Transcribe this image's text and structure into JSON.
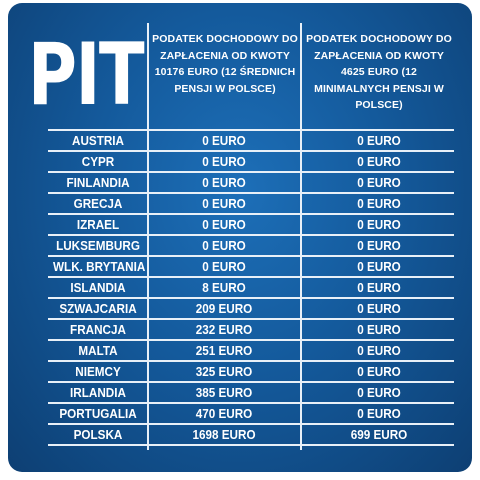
{
  "title": "PIT",
  "columns": [
    "PODATEK DOCHODOWY DO ZAPŁACENIA OD KWOTY 10176 EURO (12 ŚREDNICH PENSJI W POLSCE)",
    "PODATEK DOCHODOWY DO ZAPŁACENIA OD KWOTY 4625 EURO (12 MINIMALNYCH PENSJI W POLSCE)"
  ],
  "rows": [
    {
      "country": "AUSTRIA",
      "avg": "0 EURO",
      "min": "0 EURO"
    },
    {
      "country": "CYPR",
      "avg": "0 EURO",
      "min": "0 EURO"
    },
    {
      "country": "FINLANDIA",
      "avg": "0 EURO",
      "min": "0 EURO"
    },
    {
      "country": "GRECJA",
      "avg": "0 EURO",
      "min": "0 EURO"
    },
    {
      "country": "IZRAEL",
      "avg": "0 EURO",
      "min": "0 EURO"
    },
    {
      "country": "LUKSEMBURG",
      "avg": "0 EURO",
      "min": "0 EURO"
    },
    {
      "country": "WLK. BRYTANIA",
      "avg": "0 EURO",
      "min": "0 EURO"
    },
    {
      "country": "ISLANDIA",
      "avg": "8 EURO",
      "min": "0 EURO"
    },
    {
      "country": "SZWAJCARIA",
      "avg": "209 EURO",
      "min": "0 EURO"
    },
    {
      "country": "FRANCJA",
      "avg": "232 EURO",
      "min": "0 EURO"
    },
    {
      "country": "MALTA",
      "avg": "251 EURO",
      "min": "0 EURO"
    },
    {
      "country": "NIEMCY",
      "avg": "325 EURO",
      "min": "0 EURO"
    },
    {
      "country": "IRLANDIA",
      "avg": "385 EURO",
      "min": "0 EURO"
    },
    {
      "country": "PORTUGALIA",
      "avg": "470 EURO",
      "min": "0 EURO"
    },
    {
      "country": "POLSKA",
      "avg": "1698 EURO",
      "min": "699 EURO"
    }
  ]
}
